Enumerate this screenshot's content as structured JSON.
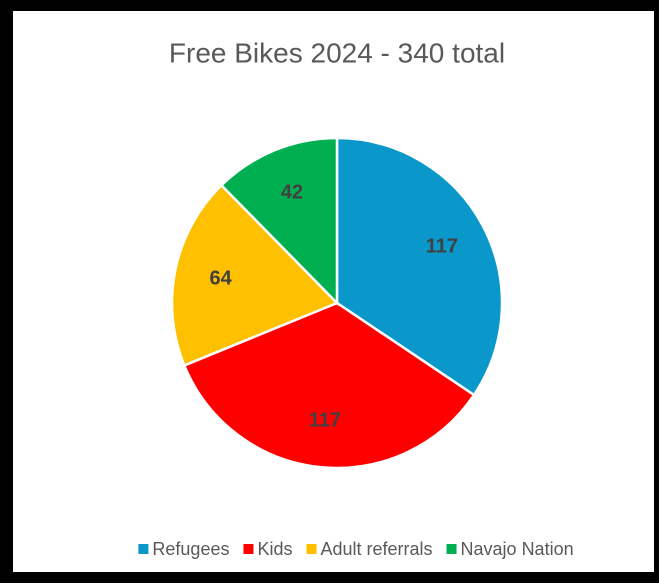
{
  "chart_data": {
    "type": "pie",
    "title": "Free Bikes 2024 - 340 total",
    "categories": [
      "Refugees",
      "Kids",
      "Adult referrals",
      "Navajo Nation"
    ],
    "values": [
      117,
      117,
      64,
      42
    ],
    "colors": [
      "#0a97c9",
      "#ff0000",
      "#ffc000",
      "#00b050"
    ],
    "legend": "bottom"
  }
}
